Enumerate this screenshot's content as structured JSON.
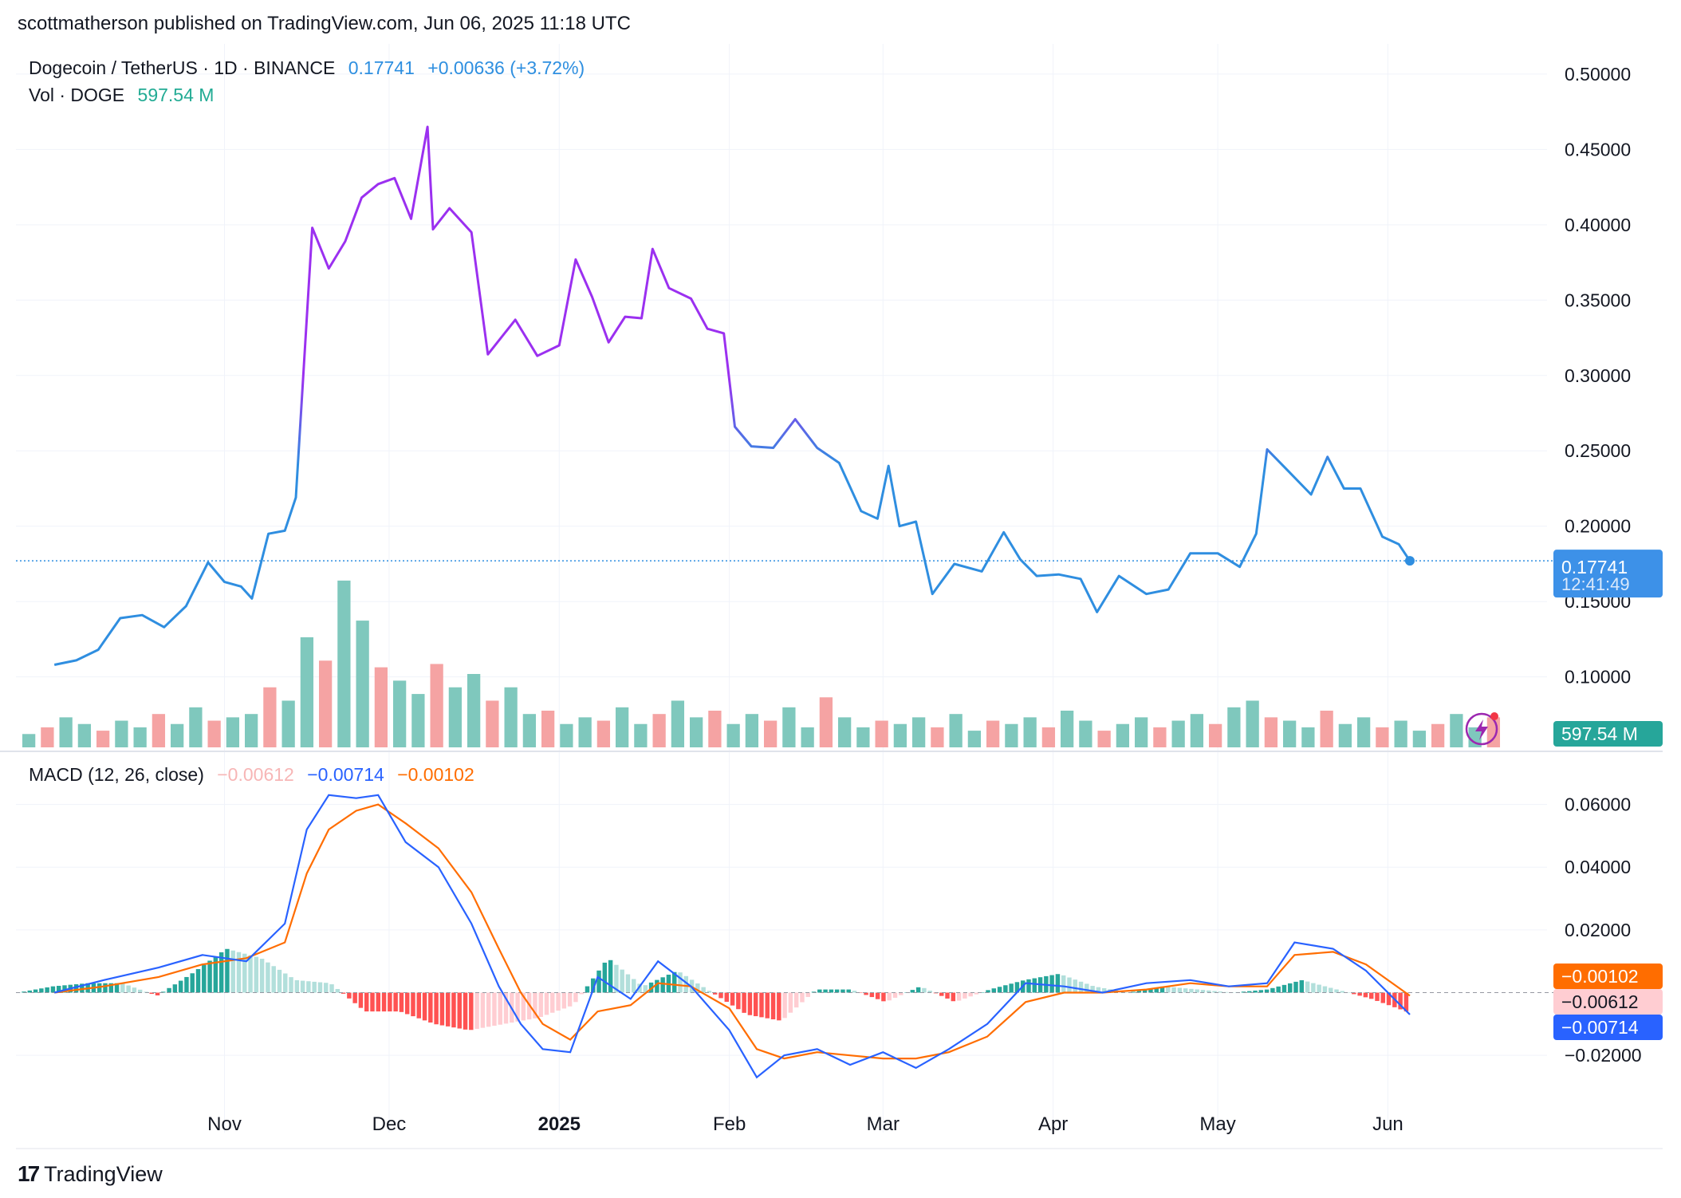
{
  "header": {
    "published": "scottmatherson published on TradingView.com, Jun 06, 2025 11:18 UTC"
  },
  "legend": {
    "symbol": "Dogecoin / TetherUS · 1D · BINANCE",
    "price": "0.17741",
    "change": "+0.00636 (+3.72%)",
    "volume_label": "Vol · DOGE",
    "volume_value": "597.54 M"
  },
  "macd_legend": {
    "label": "MACD (12, 26, close)",
    "histogram": "−0.00612",
    "macd": "−0.00714",
    "signal": "−0.00102"
  },
  "badges": {
    "price": "0.17741",
    "countdown": "12:41:49",
    "volume": "597.54 M",
    "signal": "−0.00102",
    "histogram": "−0.00612",
    "macd": "−0.00714"
  },
  "footer": {
    "brand": "TradingView"
  },
  "colors": {
    "line_start": "#2f8ee0",
    "line_peak": "#9b30f0",
    "macd_line": "#2962ff",
    "signal_line": "#ff6d00",
    "vol_up": "#7fc8bd",
    "vol_down": "#f5a3a3",
    "hist_up_strong": "#26a69a",
    "hist_up_weak": "#b2dfdb",
    "hist_down_strong": "#ff5252",
    "hist_down_weak": "#ffcdd2"
  },
  "chart_data": [
    {
      "type": "line",
      "title": "Dogecoin / TetherUS · 1D · BINANCE",
      "y_ticks": [
        "0.50000",
        "0.45000",
        "0.40000",
        "0.35000",
        "0.30000",
        "0.25000",
        "0.20000",
        "0.15000",
        "0.10000"
      ],
      "ylim": [
        0.085,
        0.51
      ],
      "x_ticks": [
        "Nov",
        "Dec",
        "2025",
        "Feb",
        "Mar",
        "Apr",
        "May",
        "Jun"
      ],
      "series": [
        {
          "x": [
            "2024-10-01",
            "2024-10-05",
            "2024-10-09",
            "2024-10-13",
            "2024-10-17",
            "2024-10-21",
            "2024-10-25",
            "2024-10-29",
            "2024-11-01",
            "2024-11-04",
            "2024-11-06",
            "2024-11-09",
            "2024-11-12",
            "2024-11-14",
            "2024-11-17",
            "2024-11-20",
            "2024-11-23",
            "2024-11-26",
            "2024-11-29",
            "2024-12-02",
            "2024-12-05",
            "2024-12-08",
            "2024-12-09",
            "2024-12-12",
            "2024-12-16",
            "2024-12-19",
            "2024-12-24",
            "2024-12-28",
            "2025-01-01",
            "2025-01-04",
            "2025-01-07",
            "2025-01-10",
            "2025-01-13",
            "2025-01-16",
            "2025-01-18",
            "2025-01-21",
            "2025-01-25",
            "2025-01-28",
            "2025-01-31",
            "2025-02-02",
            "2025-02-05",
            "2025-02-09",
            "2025-02-13",
            "2025-02-17",
            "2025-02-21",
            "2025-02-25",
            "2025-02-28",
            "2025-03-02",
            "2025-03-04",
            "2025-03-07",
            "2025-03-10",
            "2025-03-14",
            "2025-03-19",
            "2025-03-23",
            "2025-03-26",
            "2025-03-29",
            "2025-04-02",
            "2025-04-06",
            "2025-04-09",
            "2025-04-13",
            "2025-04-18",
            "2025-04-22",
            "2025-04-26",
            "2025-05-01",
            "2025-05-05",
            "2025-05-08",
            "2025-05-10",
            "2025-05-14",
            "2025-05-18",
            "2025-05-21",
            "2025-05-24",
            "2025-05-27",
            "2025-05-31",
            "2025-06-03",
            "2025-06-05"
          ],
          "values": [
            0.108,
            0.111,
            0.118,
            0.139,
            0.141,
            0.133,
            0.147,
            0.176,
            0.163,
            0.16,
            0.152,
            0.195,
            0.197,
            0.219,
            0.398,
            0.371,
            0.389,
            0.418,
            0.427,
            0.431,
            0.404,
            0.465,
            0.397,
            0.411,
            0.395,
            0.314,
            0.337,
            0.313,
            0.32,
            0.377,
            0.352,
            0.322,
            0.339,
            0.338,
            0.384,
            0.358,
            0.351,
            0.331,
            0.328,
            0.266,
            0.253,
            0.252,
            0.271,
            0.252,
            0.242,
            0.21,
            0.205,
            0.24,
            0.2,
            0.203,
            0.155,
            0.175,
            0.17,
            0.196,
            0.178,
            0.167,
            0.168,
            0.165,
            0.143,
            0.167,
            0.155,
            0.158,
            0.182,
            0.182,
            0.173,
            0.195,
            0.251,
            0.236,
            0.221,
            0.246,
            0.225,
            0.225,
            0.193,
            0.188,
            0.177
          ]
        }
      ]
    },
    {
      "type": "bar",
      "title": "Vol · DOGE",
      "series": [
        {
          "name": "Vol · DOGE",
          "values": [
            4,
            6,
            9,
            7,
            5,
            8,
            6,
            10,
            7,
            12,
            8,
            9,
            10,
            18,
            14,
            33,
            26,
            50,
            38,
            24,
            20,
            16,
            25,
            18,
            22,
            14,
            18,
            10,
            11,
            7,
            9,
            8,
            12,
            7,
            10,
            14,
            9,
            11,
            7,
            10,
            8,
            12,
            6,
            15,
            9,
            6,
            8,
            7,
            9,
            6,
            10,
            5,
            8,
            7,
            9,
            6,
            11,
            8,
            5,
            7,
            9,
            6,
            8,
            10,
            7,
            12,
            14,
            9,
            8,
            6,
            11,
            7,
            9,
            6,
            8,
            5,
            7,
            10,
            6,
            9
          ]
        }
      ]
    },
    {
      "type": "line",
      "title": "MACD (12, 26, close)",
      "y_ticks": [
        "0.06000",
        "0.04000",
        "0.02000",
        "-0.02000"
      ],
      "ylim": [
        -0.037,
        0.066
      ],
      "series": [
        {
          "name": "MACD",
          "x": [
            "2024-10-01",
            "2024-10-10",
            "2024-10-20",
            "2024-10-28",
            "2024-11-05",
            "2024-11-12",
            "2024-11-16",
            "2024-11-20",
            "2024-11-25",
            "2024-11-29",
            "2024-12-04",
            "2024-12-10",
            "2024-12-16",
            "2024-12-21",
            "2024-12-25",
            "2024-12-29",
            "2025-01-03",
            "2025-01-08",
            "2025-01-14",
            "2025-01-19",
            "2025-01-25",
            "2025-02-01",
            "2025-02-06",
            "2025-02-11",
            "2025-02-17",
            "2025-02-23",
            "2025-03-01",
            "2025-03-07",
            "2025-03-13",
            "2025-03-20",
            "2025-03-27",
            "2025-04-03",
            "2025-04-10",
            "2025-04-18",
            "2025-04-26",
            "2025-05-03",
            "2025-05-10",
            "2025-05-15",
            "2025-05-22",
            "2025-05-28",
            "2025-06-05"
          ],
          "values": [
            0.0,
            0.004,
            0.008,
            0.012,
            0.01,
            0.022,
            0.052,
            0.063,
            0.062,
            0.063,
            0.048,
            0.04,
            0.022,
            0.002,
            -0.01,
            -0.018,
            -0.019,
            0.005,
            -0.002,
            0.01,
            0.002,
            -0.012,
            -0.027,
            -0.02,
            -0.018,
            -0.023,
            -0.019,
            -0.024,
            -0.018,
            -0.01,
            0.003,
            0.002,
            0.0,
            0.003,
            0.004,
            0.002,
            0.003,
            0.016,
            0.014,
            0.007,
            -0.007
          ]
        },
        {
          "name": "Signal",
          "x": [
            "2024-10-01",
            "2024-10-10",
            "2024-10-20",
            "2024-10-28",
            "2024-11-05",
            "2024-11-12",
            "2024-11-16",
            "2024-11-20",
            "2024-11-25",
            "2024-11-29",
            "2024-12-04",
            "2024-12-10",
            "2024-12-16",
            "2024-12-21",
            "2024-12-25",
            "2024-12-29",
            "2025-01-03",
            "2025-01-08",
            "2025-01-14",
            "2025-01-19",
            "2025-01-25",
            "2025-02-01",
            "2025-02-06",
            "2025-02-11",
            "2025-02-17",
            "2025-02-23",
            "2025-03-01",
            "2025-03-07",
            "2025-03-13",
            "2025-03-20",
            "2025-03-27",
            "2025-04-03",
            "2025-04-10",
            "2025-04-18",
            "2025-04-26",
            "2025-05-03",
            "2025-05-10",
            "2025-05-15",
            "2025-05-22",
            "2025-05-28",
            "2025-06-05"
          ],
          "values": [
            0.0,
            0.002,
            0.005,
            0.009,
            0.011,
            0.016,
            0.038,
            0.052,
            0.058,
            0.06,
            0.054,
            0.046,
            0.032,
            0.014,
            0.0,
            -0.01,
            -0.015,
            -0.006,
            -0.004,
            0.003,
            0.002,
            -0.005,
            -0.018,
            -0.021,
            -0.019,
            -0.02,
            -0.021,
            -0.021,
            -0.019,
            -0.014,
            -0.003,
            0.0,
            0.0,
            0.001,
            0.003,
            0.002,
            0.002,
            0.012,
            0.013,
            0.009,
            -0.001
          ]
        },
        {
          "name": "Histogram",
          "values": [
            0.0,
            0.002,
            0.003,
            0.003,
            -0.001,
            0.006,
            0.014,
            0.011,
            0.004,
            0.003,
            -0.006,
            -0.006,
            -0.01,
            -0.012,
            -0.01,
            -0.008,
            -0.004,
            0.011,
            0.002,
            0.007,
            0.0,
            -0.007,
            -0.009,
            0.001,
            0.001,
            -0.003,
            0.002,
            -0.003,
            0.001,
            0.004,
            0.006,
            0.002,
            0.0,
            0.002,
            0.001,
            0.0,
            0.001,
            0.004,
            0.001,
            -0.002,
            -0.006
          ]
        }
      ]
    }
  ]
}
